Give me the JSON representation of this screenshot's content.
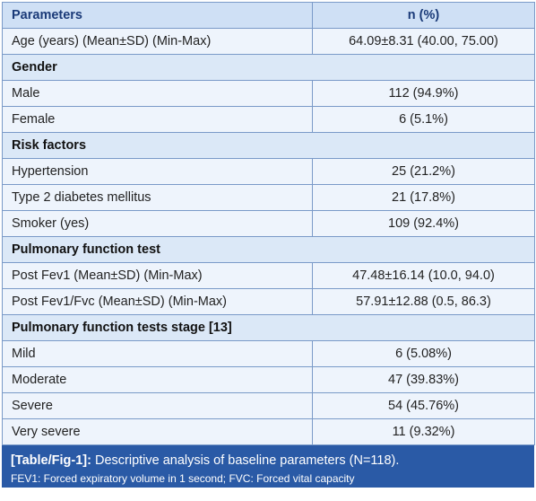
{
  "table": {
    "header": {
      "param": "Parameters",
      "value": "n (%)"
    },
    "rows": [
      {
        "type": "row",
        "label": "Age (years) (Mean±SD) (Min-Max)",
        "value": "64.09±8.31 (40.00, 75.00)"
      },
      {
        "type": "section",
        "label": "Gender"
      },
      {
        "type": "row",
        "label": "Male",
        "value": "112 (94.9%)"
      },
      {
        "type": "row",
        "label": "Female",
        "value": "6 (5.1%)"
      },
      {
        "type": "section",
        "label": "Risk factors"
      },
      {
        "type": "row",
        "label": "Hypertension",
        "value": "25 (21.2%)"
      },
      {
        "type": "row",
        "label": "Type 2 diabetes mellitus",
        "value": "21 (17.8%)"
      },
      {
        "type": "row",
        "label": "Smoker (yes)",
        "value": "109 (92.4%)"
      },
      {
        "type": "section",
        "label": "Pulmonary function test"
      },
      {
        "type": "row",
        "label": "Post Fev1 (Mean±SD) (Min-Max)",
        "value": "47.48±16.14 (10.0, 94.0)"
      },
      {
        "type": "row",
        "label": "Post Fev1/Fvc (Mean±SD) (Min-Max)",
        "value": "57.91±12.88 (0.5, 86.3)"
      },
      {
        "type": "section",
        "label": "Pulmonary function tests stage [13]"
      },
      {
        "type": "row",
        "label": "Mild",
        "value": "6 (5.08%)"
      },
      {
        "type": "row",
        "label": "Moderate",
        "value": "47 (39.83%)"
      },
      {
        "type": "row",
        "label": "Severe",
        "value": "54 (45.76%)"
      },
      {
        "type": "row",
        "label": "Very severe",
        "value": "11 (9.32%)"
      }
    ]
  },
  "caption": {
    "tag": "[Table/Fig-1]:",
    "title": "Descriptive analysis of baseline parameters (N=118).",
    "footnote": "FEV1: Forced expiratory volume in 1 second; FVC: Forced vital capacity"
  },
  "colors": {
    "border": "#7a9ac8",
    "header_bg": "#cfe0f5",
    "section_bg": "#dbe8f7",
    "row_bg": "#eef4fc",
    "caption_bg": "#2a5aa6"
  }
}
